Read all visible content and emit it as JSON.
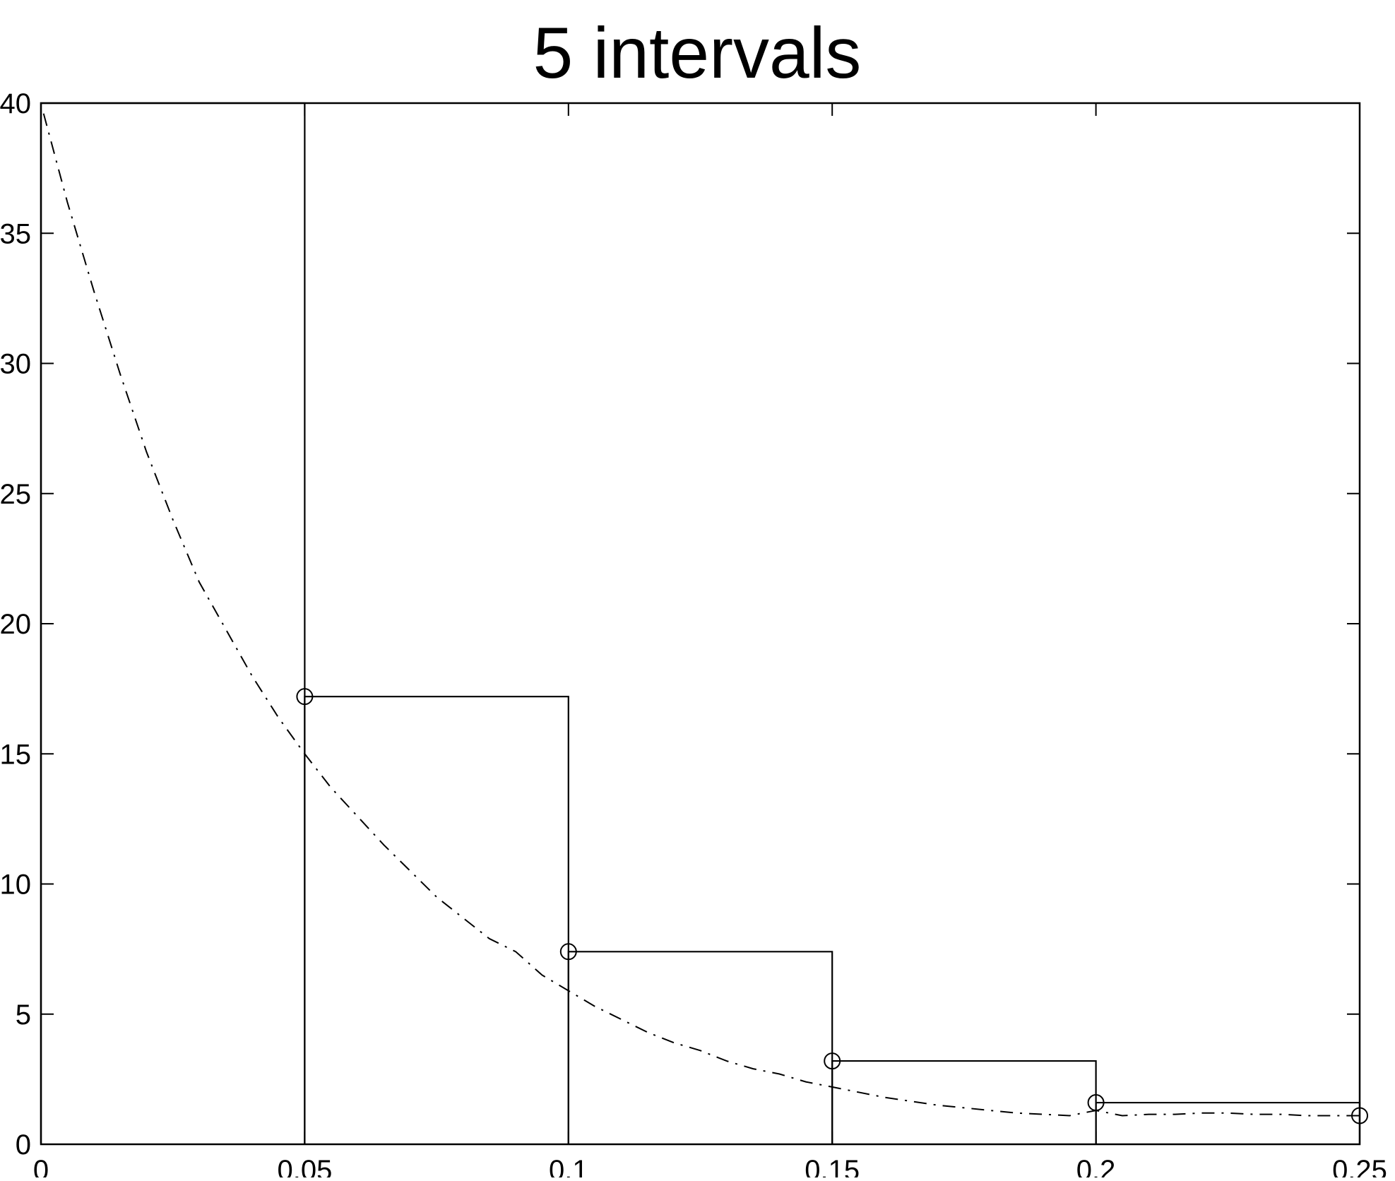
{
  "chart_data": {
    "type": "line",
    "title": "5 intervals",
    "xlim": [
      0,
      0.25
    ],
    "ylim": [
      0,
      40
    ],
    "x_ticks": [
      0,
      0.05,
      0.1,
      0.15,
      0.2,
      0.25
    ],
    "x_tick_labels": [
      "0",
      "0.05",
      "0.1",
      "0.15",
      "0.2",
      "0.25"
    ],
    "y_ticks": [
      0,
      5,
      10,
      15,
      20,
      25,
      30,
      35,
      40
    ],
    "y_tick_labels": [
      "0",
      "5",
      "10",
      "15",
      "20",
      "25",
      "30",
      "35",
      "40"
    ],
    "grid": false,
    "series": [
      {
        "style": "step",
        "line": "solid",
        "color": "#000000",
        "bars": [
          {
            "x0": 0.0,
            "x1": 0.05,
            "y": 40
          },
          {
            "x0": 0.05,
            "x1": 0.1,
            "y": 17.2
          },
          {
            "x0": 0.1,
            "x1": 0.15,
            "y": 7.4
          },
          {
            "x0": 0.15,
            "x1": 0.2,
            "y": 3.2
          },
          {
            "x0": 0.2,
            "x1": 0.25,
            "y": 1.6
          }
        ]
      },
      {
        "style": "curve",
        "line": "dash-dot",
        "color": "#000000",
        "x": [
          0.0005,
          0.005,
          0.01,
          0.015,
          0.02,
          0.025,
          0.03,
          0.035,
          0.04,
          0.045,
          0.05,
          0.055,
          0.06,
          0.065,
          0.07,
          0.075,
          0.08,
          0.085,
          0.09,
          0.095,
          0.1,
          0.105,
          0.11,
          0.115,
          0.12,
          0.125,
          0.13,
          0.135,
          0.14,
          0.145,
          0.15,
          0.155,
          0.16,
          0.165,
          0.17,
          0.175,
          0.18,
          0.185,
          0.19,
          0.195,
          0.2,
          0.205,
          0.21,
          0.215,
          0.22,
          0.225,
          0.23,
          0.235,
          0.24,
          0.245,
          0.25
        ],
        "y": [
          39.6,
          36.2,
          32.8,
          29.6,
          26.6,
          24.0,
          21.6,
          19.8,
          18.0,
          16.4,
          15.0,
          13.7,
          12.6,
          11.5,
          10.5,
          9.5,
          8.7,
          7.9,
          7.4,
          6.5,
          5.9,
          5.3,
          4.8,
          4.3,
          3.9,
          3.6,
          3.2,
          2.9,
          2.7,
          2.4,
          2.2,
          2.0,
          1.8,
          1.65,
          1.5,
          1.4,
          1.3,
          1.2,
          1.15,
          1.1,
          1.3,
          1.1,
          1.15,
          1.15,
          1.2,
          1.2,
          1.15,
          1.15,
          1.1,
          1.1,
          1.1
        ]
      },
      {
        "style": "markers",
        "marker": "circle",
        "color": "#000000",
        "x": [
          0.05,
          0.1,
          0.15,
          0.2,
          0.25
        ],
        "y": [
          17.2,
          7.4,
          3.2,
          1.6,
          1.1
        ]
      }
    ]
  }
}
